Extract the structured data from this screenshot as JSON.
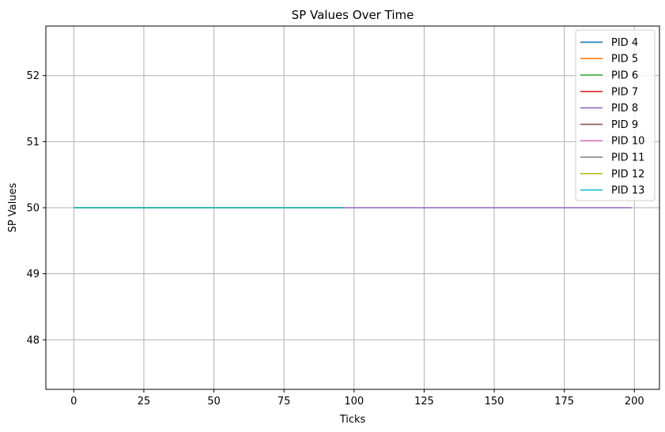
{
  "chart_data": {
    "type": "line",
    "title": "SP Values Over Time",
    "xlabel": "Ticks",
    "ylabel": "SP Values",
    "xlim": [
      -9.95,
      208.95
    ],
    "ylim": [
      47.25,
      52.75
    ],
    "xticks": [
      0,
      25,
      50,
      75,
      100,
      125,
      150,
      175,
      200
    ],
    "yticks": [
      48,
      49,
      50,
      51,
      52
    ],
    "grid": true,
    "legend_position": "top-right",
    "series": [
      {
        "name": "PID 4",
        "color": "#1f77b4",
        "x": [
          0,
          96
        ],
        "y": [
          50,
          50
        ]
      },
      {
        "name": "PID 5",
        "color": "#ff7f0e",
        "x": [
          0,
          96
        ],
        "y": [
          50,
          50
        ]
      },
      {
        "name": "PID 6",
        "color": "#2ca02c",
        "x": [
          0,
          96
        ],
        "y": [
          50,
          50
        ]
      },
      {
        "name": "PID 7",
        "color": "#d62728",
        "x": [
          0,
          96
        ],
        "y": [
          50,
          50
        ]
      },
      {
        "name": "PID 8",
        "color": "#9467bd",
        "x": [
          0,
          199
        ],
        "y": [
          50,
          50
        ]
      },
      {
        "name": "PID 9",
        "color": "#8c564b",
        "x": [
          0,
          96
        ],
        "y": [
          50,
          50
        ]
      },
      {
        "name": "PID 10",
        "color": "#e377c2",
        "x": [
          0,
          96
        ],
        "y": [
          50,
          50
        ]
      },
      {
        "name": "PID 11",
        "color": "#7f7f7f",
        "x": [
          0,
          96
        ],
        "y": [
          50,
          50
        ]
      },
      {
        "name": "PID 12",
        "color": "#bcbd22",
        "x": [
          0,
          96
        ],
        "y": [
          50,
          50
        ]
      },
      {
        "name": "PID 13",
        "color": "#17becf",
        "x": [
          0,
          96
        ],
        "y": [
          50,
          50
        ]
      }
    ]
  }
}
